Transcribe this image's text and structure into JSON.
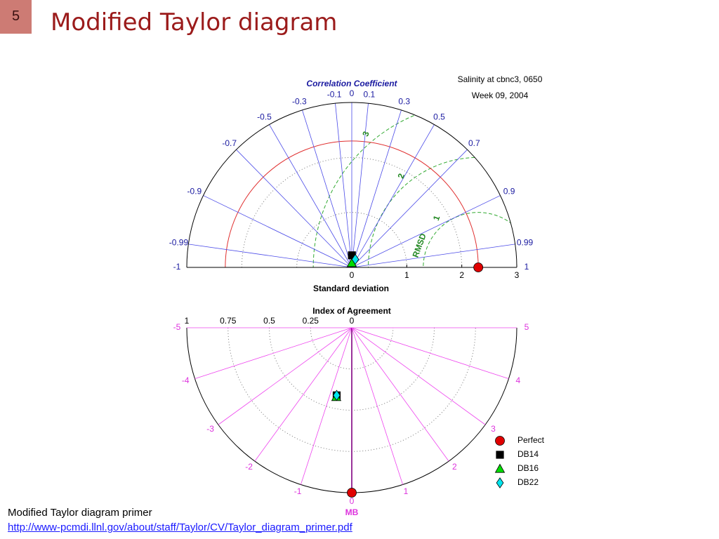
{
  "slide_number": "5",
  "title": "Modified Taylor diagram",
  "taylor": {
    "title_lines": [
      "Salinity at cbnc3, 0650",
      "Week 09, 2004"
    ],
    "angular_axis_label": "Correlation Coefficient",
    "radial_axis_label": "Standard deviation",
    "rmsd_label": "RMSD",
    "correlation_ticks": [
      -1,
      -0.99,
      -0.9,
      -0.7,
      -0.5,
      -0.3,
      -0.1,
      0,
      0.1,
      0.3,
      0.5,
      0.7,
      0.9,
      0.99,
      1
    ],
    "std_lim": [
      0,
      3
    ],
    "std_ticks": [
      0,
      1,
      2,
      3
    ],
    "rmsd_ticks": [
      1,
      2,
      3
    ],
    "reference_std": 2.3,
    "points": [
      {
        "name": "Perfect",
        "marker": "circle",
        "color": "#e00000",
        "std": 2.3,
        "corr": 1
      },
      {
        "name": "DB14",
        "marker": "square",
        "color": "#000000",
        "std": 0.22,
        "corr": 0.01
      },
      {
        "name": "DB16",
        "marker": "triangle",
        "color": "#00dd00",
        "std": 0.08,
        "corr": 0
      },
      {
        "name": "DB22",
        "marker": "diamond",
        "color": "#00e5ee",
        "std": 0.16,
        "corr": 0.4
      }
    ]
  },
  "agreement": {
    "angular_axis_label": "MB",
    "radial_axis_label": "Index of Agreement",
    "mb_lim": [
      -5,
      5
    ],
    "mb_ticks": [
      -5,
      -4,
      -3,
      -2,
      -1,
      0,
      1,
      2,
      3,
      4,
      5
    ],
    "ia_lim": [
      0,
      1
    ],
    "ia_ticks": [
      1,
      0.75,
      0.5,
      0.25,
      0
    ],
    "points": [
      {
        "ia": 1,
        "mb": 0
      },
      {
        "ia": 0.42,
        "mb": -0.7
      },
      {
        "ia": 0.43,
        "mb": -0.7
      },
      {
        "ia": 0.42,
        "mb": -0.7
      }
    ]
  },
  "footer": {
    "text": "Modified Taylor diagram primer",
    "link": "http://www-pcmdi.llnl.gov/about/staff/Taylor/CV/Taylor_diagram_primer.pdf"
  }
}
